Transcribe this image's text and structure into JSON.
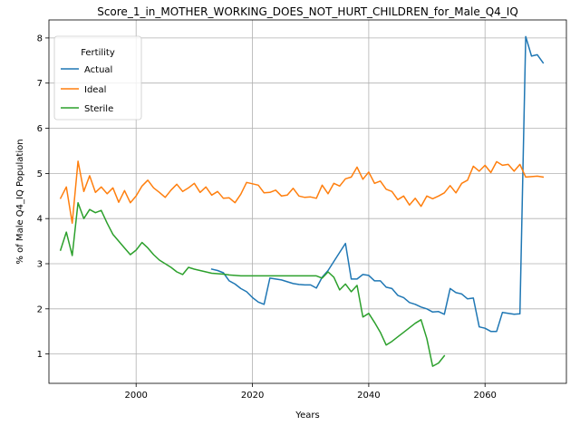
{
  "chart_data": {
    "type": "line",
    "title": "Score_1_in_MOTHER_WORKING_DOES_NOT_HURT_CHILDREN_for_Male_Q4_IQ",
    "xlabel": "Years",
    "ylabel": "% of Male Q4_IQ Population",
    "xlim": [
      1985,
      2074
    ],
    "ylim": [
      0.35,
      8.4
    ],
    "xticks": [
      2000,
      2020,
      2040,
      2060
    ],
    "yticks": [
      1,
      2,
      3,
      4,
      5,
      6,
      7,
      8
    ],
    "grid": true,
    "legend": {
      "title": "Fertility",
      "placement": "top-left"
    },
    "series": [
      {
        "name": "Actual",
        "color": "#1f77b4",
        "points": [
          [
            2013,
            2.88
          ],
          [
            2014,
            2.85
          ],
          [
            2015,
            2.8
          ],
          [
            2016,
            2.62
          ],
          [
            2017,
            2.55
          ],
          [
            2018,
            2.45
          ],
          [
            2019,
            2.38
          ],
          [
            2020,
            2.25
          ],
          [
            2021,
            2.15
          ],
          [
            2022,
            2.1
          ],
          [
            2023,
            2.68
          ],
          [
            2024,
            2.66
          ],
          [
            2025,
            2.64
          ],
          [
            2026,
            2.6
          ],
          [
            2027,
            2.56
          ],
          [
            2028,
            2.54
          ],
          [
            2029,
            2.53
          ],
          [
            2030,
            2.53
          ],
          [
            2031,
            2.46
          ],
          [
            2032,
            2.7
          ],
          [
            2033,
            2.85
          ],
          [
            2034,
            3.05
          ],
          [
            2035,
            3.25
          ],
          [
            2036,
            3.45
          ],
          [
            2037,
            2.66
          ],
          [
            2038,
            2.66
          ],
          [
            2039,
            2.76
          ],
          [
            2040,
            2.74
          ],
          [
            2041,
            2.62
          ],
          [
            2042,
            2.62
          ],
          [
            2043,
            2.48
          ],
          [
            2044,
            2.45
          ],
          [
            2045,
            2.3
          ],
          [
            2046,
            2.25
          ],
          [
            2047,
            2.14
          ],
          [
            2048,
            2.1
          ],
          [
            2049,
            2.04
          ],
          [
            2050,
            2.0
          ],
          [
            2051,
            1.93
          ],
          [
            2052,
            1.94
          ],
          [
            2053,
            1.88
          ],
          [
            2054,
            2.45
          ],
          [
            2055,
            2.36
          ],
          [
            2056,
            2.33
          ],
          [
            2057,
            2.22
          ],
          [
            2058,
            2.24
          ],
          [
            2059,
            1.6
          ],
          [
            2060,
            1.57
          ],
          [
            2061,
            1.5
          ],
          [
            2062,
            1.5
          ],
          [
            2063,
            1.92
          ],
          [
            2064,
            1.9
          ],
          [
            2065,
            1.88
          ],
          [
            2066,
            1.89
          ],
          [
            2067,
            8.03
          ],
          [
            2068,
            7.6
          ],
          [
            2069,
            7.63
          ],
          [
            2070,
            7.45
          ]
        ]
      },
      {
        "name": "Ideal",
        "color": "#ff7f0e",
        "points": [
          [
            1987,
            4.45
          ],
          [
            1988,
            4.7
          ],
          [
            1989,
            3.9
          ],
          [
            1990,
            5.27
          ],
          [
            1991,
            4.6
          ],
          [
            1992,
            4.95
          ],
          [
            1993,
            4.58
          ],
          [
            1994,
            4.7
          ],
          [
            1995,
            4.55
          ],
          [
            1996,
            4.68
          ],
          [
            1997,
            4.36
          ],
          [
            1998,
            4.62
          ],
          [
            1999,
            4.35
          ],
          [
            2000,
            4.5
          ],
          [
            2001,
            4.72
          ],
          [
            2002,
            4.85
          ],
          [
            2003,
            4.68
          ],
          [
            2004,
            4.58
          ],
          [
            2005,
            4.47
          ],
          [
            2006,
            4.63
          ],
          [
            2007,
            4.76
          ],
          [
            2008,
            4.6
          ],
          [
            2009,
            4.68
          ],
          [
            2010,
            4.78
          ],
          [
            2011,
            4.58
          ],
          [
            2012,
            4.7
          ],
          [
            2013,
            4.52
          ],
          [
            2014,
            4.6
          ],
          [
            2015,
            4.45
          ],
          [
            2016,
            4.46
          ],
          [
            2017,
            4.35
          ],
          [
            2018,
            4.54
          ],
          [
            2019,
            4.8
          ],
          [
            2020,
            4.77
          ],
          [
            2021,
            4.74
          ],
          [
            2022,
            4.57
          ],
          [
            2023,
            4.58
          ],
          [
            2024,
            4.63
          ],
          [
            2025,
            4.5
          ],
          [
            2026,
            4.52
          ],
          [
            2027,
            4.67
          ],
          [
            2028,
            4.5
          ],
          [
            2029,
            4.47
          ],
          [
            2030,
            4.48
          ],
          [
            2031,
            4.45
          ],
          [
            2032,
            4.74
          ],
          [
            2033,
            4.55
          ],
          [
            2034,
            4.78
          ],
          [
            2035,
            4.72
          ],
          [
            2036,
            4.88
          ],
          [
            2037,
            4.92
          ],
          [
            2038,
            5.14
          ],
          [
            2039,
            4.87
          ],
          [
            2040,
            5.03
          ],
          [
            2041,
            4.78
          ],
          [
            2042,
            4.83
          ],
          [
            2043,
            4.65
          ],
          [
            2044,
            4.6
          ],
          [
            2045,
            4.42
          ],
          [
            2046,
            4.5
          ],
          [
            2047,
            4.3
          ],
          [
            2048,
            4.45
          ],
          [
            2049,
            4.27
          ],
          [
            2050,
            4.5
          ],
          [
            2051,
            4.44
          ],
          [
            2052,
            4.5
          ],
          [
            2053,
            4.57
          ],
          [
            2054,
            4.73
          ],
          [
            2055,
            4.57
          ],
          [
            2056,
            4.78
          ],
          [
            2057,
            4.85
          ],
          [
            2058,
            5.16
          ],
          [
            2059,
            5.05
          ],
          [
            2060,
            5.18
          ],
          [
            2061,
            5.02
          ],
          [
            2062,
            5.26
          ],
          [
            2063,
            5.18
          ],
          [
            2064,
            5.2
          ],
          [
            2065,
            5.05
          ],
          [
            2066,
            5.2
          ],
          [
            2067,
            4.92
          ],
          [
            2068,
            4.93
          ],
          [
            2069,
            4.94
          ],
          [
            2070,
            4.92
          ]
        ]
      },
      {
        "name": "Sterile",
        "color": "#2ca02c",
        "points": [
          [
            1987,
            3.3
          ],
          [
            1988,
            3.7
          ],
          [
            1989,
            3.18
          ],
          [
            1990,
            4.35
          ],
          [
            1991,
            4.0
          ],
          [
            1992,
            4.2
          ],
          [
            1993,
            4.13
          ],
          [
            1994,
            4.18
          ],
          [
            1995,
            3.9
          ],
          [
            1996,
            3.65
          ],
          [
            1997,
            3.5
          ],
          [
            1998,
            3.35
          ],
          [
            1999,
            3.2
          ],
          [
            2000,
            3.3
          ],
          [
            2001,
            3.47
          ],
          [
            2002,
            3.35
          ],
          [
            2003,
            3.2
          ],
          [
            2004,
            3.08
          ],
          [
            2005,
            3.0
          ],
          [
            2006,
            2.92
          ],
          [
            2007,
            2.82
          ],
          [
            2008,
            2.76
          ],
          [
            2009,
            2.92
          ],
          [
            2010,
            2.88
          ],
          [
            2011,
            2.85
          ],
          [
            2012,
            2.82
          ],
          [
            2013,
            2.79
          ],
          [
            2014,
            2.78
          ],
          [
            2015,
            2.77
          ],
          [
            2016,
            2.75
          ],
          [
            2017,
            2.74
          ],
          [
            2018,
            2.73
          ],
          [
            2019,
            2.73
          ],
          [
            2020,
            2.73
          ],
          [
            2021,
            2.73
          ],
          [
            2022,
            2.73
          ],
          [
            2023,
            2.73
          ],
          [
            2024,
            2.73
          ],
          [
            2025,
            2.73
          ],
          [
            2026,
            2.73
          ],
          [
            2027,
            2.73
          ],
          [
            2028,
            2.73
          ],
          [
            2029,
            2.73
          ],
          [
            2030,
            2.73
          ],
          [
            2031,
            2.73
          ],
          [
            2032,
            2.68
          ],
          [
            2033,
            2.82
          ],
          [
            2034,
            2.7
          ],
          [
            2035,
            2.42
          ],
          [
            2036,
            2.55
          ],
          [
            2037,
            2.38
          ],
          [
            2038,
            2.52
          ],
          [
            2039,
            1.82
          ],
          [
            2040,
            1.9
          ],
          [
            2041,
            1.7
          ],
          [
            2042,
            1.48
          ],
          [
            2043,
            1.2
          ],
          [
            2044,
            1.28
          ],
          [
            2045,
            1.38
          ],
          [
            2046,
            1.48
          ],
          [
            2047,
            1.58
          ],
          [
            2048,
            1.68
          ],
          [
            2049,
            1.76
          ],
          [
            2050,
            1.34
          ],
          [
            2051,
            0.73
          ],
          [
            2052,
            0.8
          ],
          [
            2053,
            0.96
          ]
        ]
      }
    ]
  }
}
